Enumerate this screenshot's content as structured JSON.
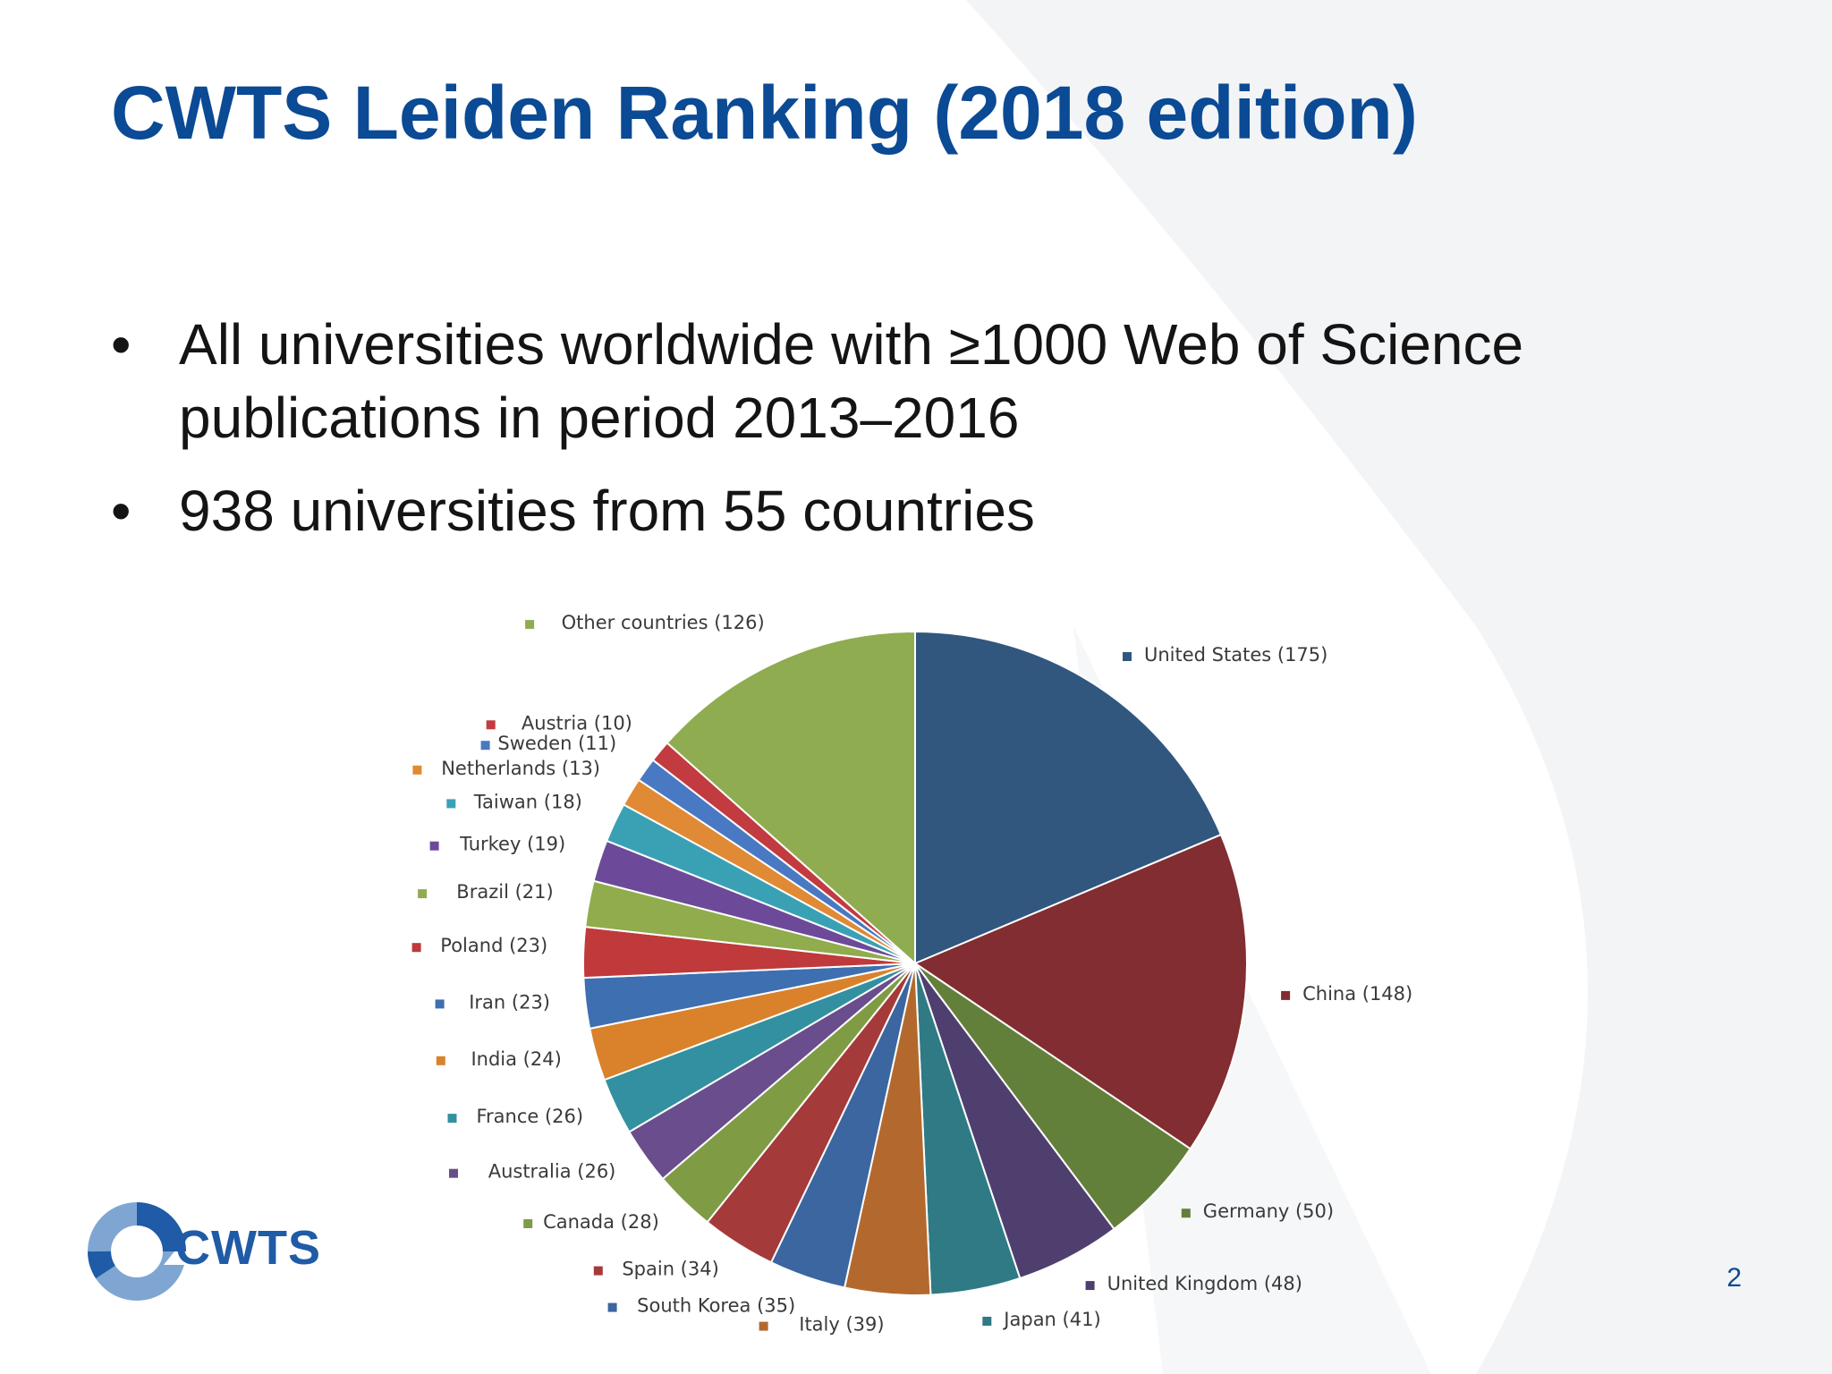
{
  "slide": {
    "title": "CWTS Leiden Ranking (2018 edition)",
    "bullets": [
      "All universities worldwide with ≥1000 Web of Science publications in period 2013–2016",
      "938 universities from 55 countries"
    ],
    "bullet_symbol": "•",
    "page_number": "2",
    "logo_text": "CWTS",
    "colors": {
      "title": "#0b4a94",
      "logo_dark": "#1f5ba6",
      "logo_light": "#7fa6d3"
    }
  },
  "chart_data": {
    "type": "pie",
    "title": "",
    "slices": [
      {
        "label": "United States (175)",
        "value": 175,
        "color": "#31577f"
      },
      {
        "label": "China (148)",
        "value": 148,
        "color": "#822d31"
      },
      {
        "label": "Germany (50)",
        "value": 50,
        "color": "#63803b"
      },
      {
        "label": "United Kingdom (48)",
        "value": 48,
        "color": "#4f3f6e"
      },
      {
        "label": "Japan (41)",
        "value": 41,
        "color": "#2f7a85"
      },
      {
        "label": "Italy (39)",
        "value": 39,
        "color": "#b3692e"
      },
      {
        "label": "South Korea (35)",
        "value": 35,
        "color": "#3b66a0"
      },
      {
        "label": "Spain (34)",
        "value": 34,
        "color": "#a53a3a"
      },
      {
        "label": "Canada (28)",
        "value": 28,
        "color": "#7f9c45"
      },
      {
        "label": "Australia (26)",
        "value": 26,
        "color": "#6a4d8c"
      },
      {
        "label": "France (26)",
        "value": 26,
        "color": "#3390a0"
      },
      {
        "label": "India (24)",
        "value": 24,
        "color": "#d9822b"
      },
      {
        "label": "Iran (23)",
        "value": 23,
        "color": "#3e6fb0"
      },
      {
        "label": "Poland (23)",
        "value": 23,
        "color": "#c0393b"
      },
      {
        "label": "Brazil (21)",
        "value": 21,
        "color": "#90ac4d"
      },
      {
        "label": "Turkey (19)",
        "value": 19,
        "color": "#6c4a99"
      },
      {
        "label": "Taiwan (18)",
        "value": 18,
        "color": "#3aa1b5"
      },
      {
        "label": "Netherlands (13)",
        "value": 13,
        "color": "#e08a35"
      },
      {
        "label": "Sweden (11)",
        "value": 11,
        "color": "#4979c2"
      },
      {
        "label": "Austria (10)",
        "value": 10,
        "color": "#c23b40"
      },
      {
        "label": "Other countries (126)",
        "value": 126,
        "color": "#8fac50"
      }
    ],
    "start_angle_deg": 0,
    "direction": "clockwise",
    "legend": "labels around pie with colored square markers"
  }
}
